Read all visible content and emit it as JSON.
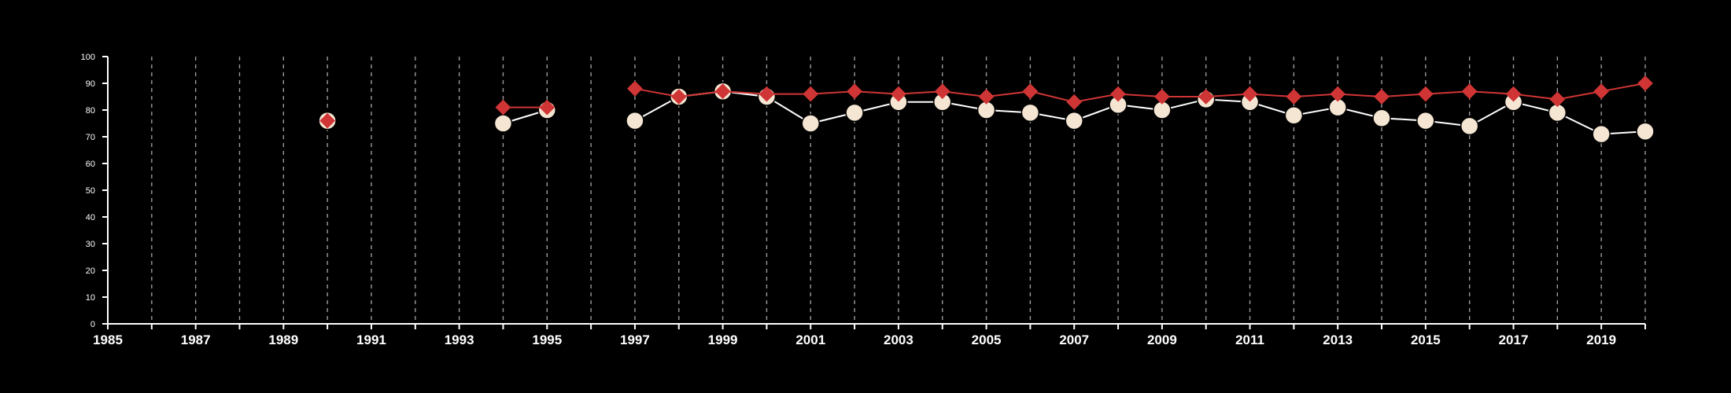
{
  "chart_data": {
    "type": "line",
    "title": "",
    "xlabel": "",
    "ylabel": "",
    "xlim": [
      1985,
      2020
    ],
    "ylim": [
      0,
      100
    ],
    "x_ticks": [
      1985,
      1987,
      1989,
      1991,
      1993,
      1995,
      1997,
      1999,
      2001,
      2003,
      2005,
      2007,
      2009,
      2011,
      2013,
      2015,
      2017,
      2019
    ],
    "y_ticks": [
      0,
      10,
      20,
      30,
      40,
      50,
      60,
      70,
      80,
      90,
      100
    ],
    "grid": "vertical dashed lines at every year",
    "legend": "none",
    "series": [
      {
        "color": "#f5e6d3",
        "marker": "circle",
        "x": [
          1990,
          1994,
          1995,
          1997,
          1998,
          1999,
          2000,
          2001,
          2002,
          2003,
          2004,
          2005,
          2006,
          2007,
          2008,
          2009,
          2010,
          2011,
          2012,
          2013,
          2014,
          2015,
          2016,
          2017,
          2018,
          2019,
          2020
        ],
        "y": [
          76,
          75,
          80,
          76,
          85,
          87,
          85,
          75,
          79,
          83,
          83,
          80,
          79,
          76,
          82,
          80,
          84,
          83,
          78,
          81,
          77,
          76,
          74,
          83,
          79,
          71,
          72
        ]
      },
      {
        "color": "#d03535",
        "marker": "diamond",
        "x": [
          1990,
          1994,
          1995,
          1997,
          1998,
          1999,
          2000,
          2001,
          2002,
          2003,
          2004,
          2005,
          2006,
          2007,
          2008,
          2009,
          2010,
          2011,
          2012,
          2013,
          2014,
          2015,
          2016,
          2017,
          2018,
          2019,
          2020
        ],
        "y": [
          76,
          81,
          81,
          88,
          85,
          87,
          86,
          86,
          87,
          86,
          87,
          85,
          87,
          83,
          86,
          85,
          85,
          86,
          85,
          86,
          85,
          86,
          87,
          86,
          84,
          87,
          90
        ]
      }
    ]
  }
}
